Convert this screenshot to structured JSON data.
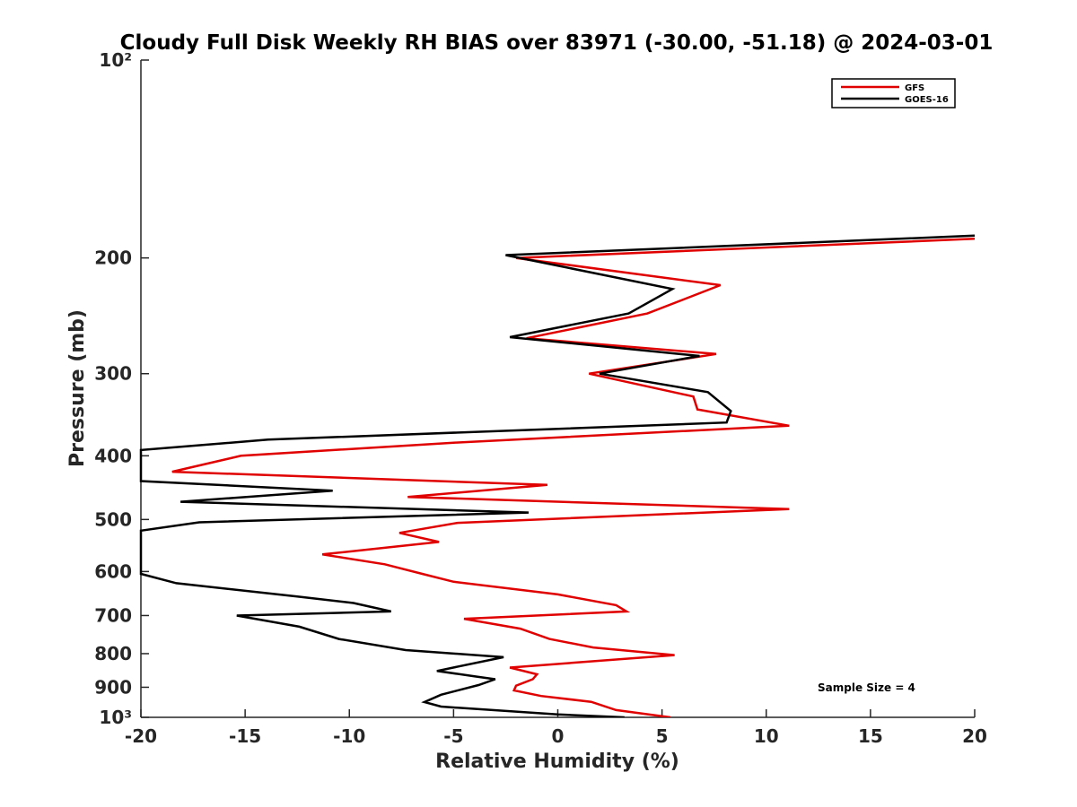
{
  "chart_data": {
    "type": "line",
    "title": "Cloudy Full Disk Weekly RH BIAS over 83971 (-30.00, -51.18) @ 2024-03-01",
    "xlabel": "Relative Humidity (%)",
    "ylabel": "Pressure (mb)",
    "xlim": [
      -20,
      20
    ],
    "ylim": [
      100,
      1000
    ],
    "y_scale": "log",
    "y_reversed": true,
    "grid": false,
    "legend_position": "top-right",
    "annotation": "Sample Size = 4",
    "x_ticks": [
      -20,
      -15,
      -10,
      -5,
      0,
      5,
      10,
      15,
      20
    ],
    "x_tick_labels": [
      "-20",
      "-15",
      "-10",
      "-5",
      "0",
      "5",
      "10",
      "15",
      "20"
    ],
    "y_ticks": [
      100,
      200,
      300,
      400,
      500,
      600,
      700,
      800,
      900,
      1000
    ],
    "y_tick_labels": [
      "10²",
      "200",
      "300",
      "400",
      "500",
      "600",
      "700",
      "800",
      "900",
      "10³"
    ],
    "series": [
      {
        "name": "GFS",
        "color": "#e00000",
        "points": [
          [
            20.0,
            187
          ],
          [
            -2.0,
            200
          ],
          [
            7.8,
            220
          ],
          [
            4.3,
            243
          ],
          [
            -1.5,
            265
          ],
          [
            7.6,
            280
          ],
          [
            1.5,
            300
          ],
          [
            6.5,
            325
          ],
          [
            6.7,
            340
          ],
          [
            11.1,
            360
          ],
          [
            -5.0,
            382
          ],
          [
            -15.2,
            400
          ],
          [
            -18.5,
            423
          ],
          [
            -0.5,
            443
          ],
          [
            -7.2,
            462
          ],
          [
            11.1,
            482
          ],
          [
            -4.8,
            506
          ],
          [
            -7.6,
            524
          ],
          [
            -5.7,
            541
          ],
          [
            -11.3,
            565
          ],
          [
            -8.3,
            585
          ],
          [
            -6.5,
            605
          ],
          [
            -5.0,
            622
          ],
          [
            0.0,
            650
          ],
          [
            2.8,
            675
          ],
          [
            3.3,
            690
          ],
          [
            -4.5,
            708
          ],
          [
            -1.8,
            733
          ],
          [
            -0.4,
            760
          ],
          [
            1.7,
            783
          ],
          [
            5.6,
            804
          ],
          [
            -2.3,
            840
          ],
          [
            -1.0,
            860
          ],
          [
            -1.2,
            875
          ],
          [
            -2.0,
            895
          ],
          [
            -2.1,
            910
          ],
          [
            -0.8,
            928
          ],
          [
            1.6,
            947
          ],
          [
            2.8,
            975
          ],
          [
            5.4,
            1000
          ]
        ]
      },
      {
        "name": "GOES-16",
        "color": "#000000",
        "points": [
          [
            20.0,
            185
          ],
          [
            -2.5,
            198
          ],
          [
            5.5,
            223
          ],
          [
            3.4,
            243
          ],
          [
            -2.3,
            264
          ],
          [
            6.8,
            282
          ],
          [
            2.0,
            300
          ],
          [
            7.2,
            320
          ],
          [
            8.3,
            342
          ],
          [
            8.1,
            356
          ],
          [
            -13.9,
            378
          ],
          [
            -20.0,
            392
          ],
          [
            -20.0,
            437
          ],
          [
            -10.8,
            452
          ],
          [
            -18.1,
            470
          ],
          [
            -1.4,
            488
          ],
          [
            -17.2,
            505
          ],
          [
            -20.0,
            520
          ],
          [
            -20.0,
            542
          ],
          [
            -20.0,
            605
          ],
          [
            -18.3,
            625
          ],
          [
            -12.5,
            655
          ],
          [
            -9.8,
            670
          ],
          [
            -8.0,
            690
          ],
          [
            -15.4,
            700
          ],
          [
            -12.4,
            728
          ],
          [
            -10.5,
            760
          ],
          [
            -7.3,
            790
          ],
          [
            -2.6,
            810
          ],
          [
            -5.8,
            850
          ],
          [
            -4.0,
            866
          ],
          [
            -3.0,
            875
          ],
          [
            -3.8,
            893
          ],
          [
            -5.6,
            924
          ],
          [
            -6.4,
            948
          ],
          [
            -5.6,
            963
          ],
          [
            0.0,
            990
          ],
          [
            3.2,
            1000
          ]
        ]
      }
    ]
  }
}
